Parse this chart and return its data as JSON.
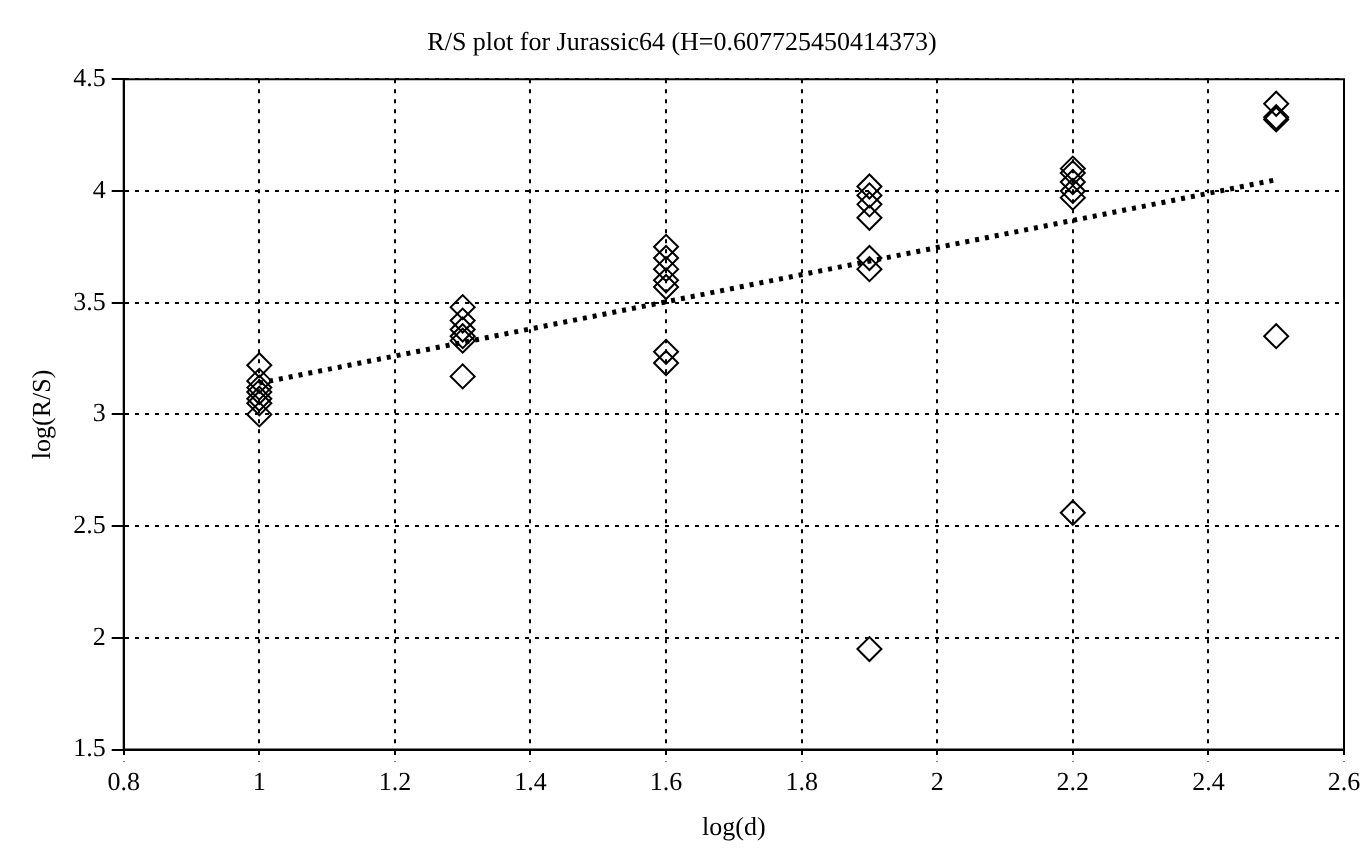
{
  "chart_data": {
    "type": "scatter",
    "title": "R/S plot for Jurassic64 (H=0.607725450414373)",
    "xlabel": "log(d)",
    "ylabel": "log(R/S)",
    "xlim": [
      0.8,
      2.6
    ],
    "xticks": [
      0.8,
      1,
      1.2,
      1.4,
      1.6,
      1.8,
      2,
      2.2,
      2.4,
      2.6
    ],
    "ylim": [
      1.5,
      4.5
    ],
    "yticks": [
      1.5,
      2,
      2.5,
      3,
      3.5,
      4,
      4.5
    ],
    "grid": true,
    "legend": false,
    "series": [
      {
        "type": "scatter",
        "color": "#000000",
        "marker": "diamond",
        "x": [
          1,
          1,
          1,
          1,
          1,
          1,
          1,
          1.3,
          1.3,
          1.3,
          1.3,
          1.3,
          1.3,
          1.6,
          1.6,
          1.6,
          1.6,
          1.6,
          1.6,
          1.6,
          1.9,
          1.9,
          1.9,
          1.9,
          1.9,
          1.9,
          1.9,
          2.2,
          2.2,
          2.2,
          2.2,
          2.2,
          2.2,
          2.5,
          2.5,
          2.5,
          2.5
        ],
        "values": [
          3.22,
          3.15,
          3.12,
          3.1,
          3.07,
          3.05,
          3.0,
          3.48,
          3.42,
          3.38,
          3.35,
          3.33,
          3.17,
          3.75,
          3.7,
          3.65,
          3.6,
          3.57,
          3.28,
          3.23,
          4.02,
          3.98,
          3.94,
          3.88,
          3.7,
          3.65,
          1.95,
          4.1,
          4.08,
          4.04,
          4.0,
          3.97,
          2.56,
          4.39,
          4.33,
          4.32,
          3.35
        ]
      },
      {
        "type": "line",
        "color": "#000000",
        "line_style": "dotted",
        "marker": "none",
        "x": [
          1,
          2.5
        ],
        "values": [
          3.14,
          4.05
        ]
      }
    ]
  }
}
